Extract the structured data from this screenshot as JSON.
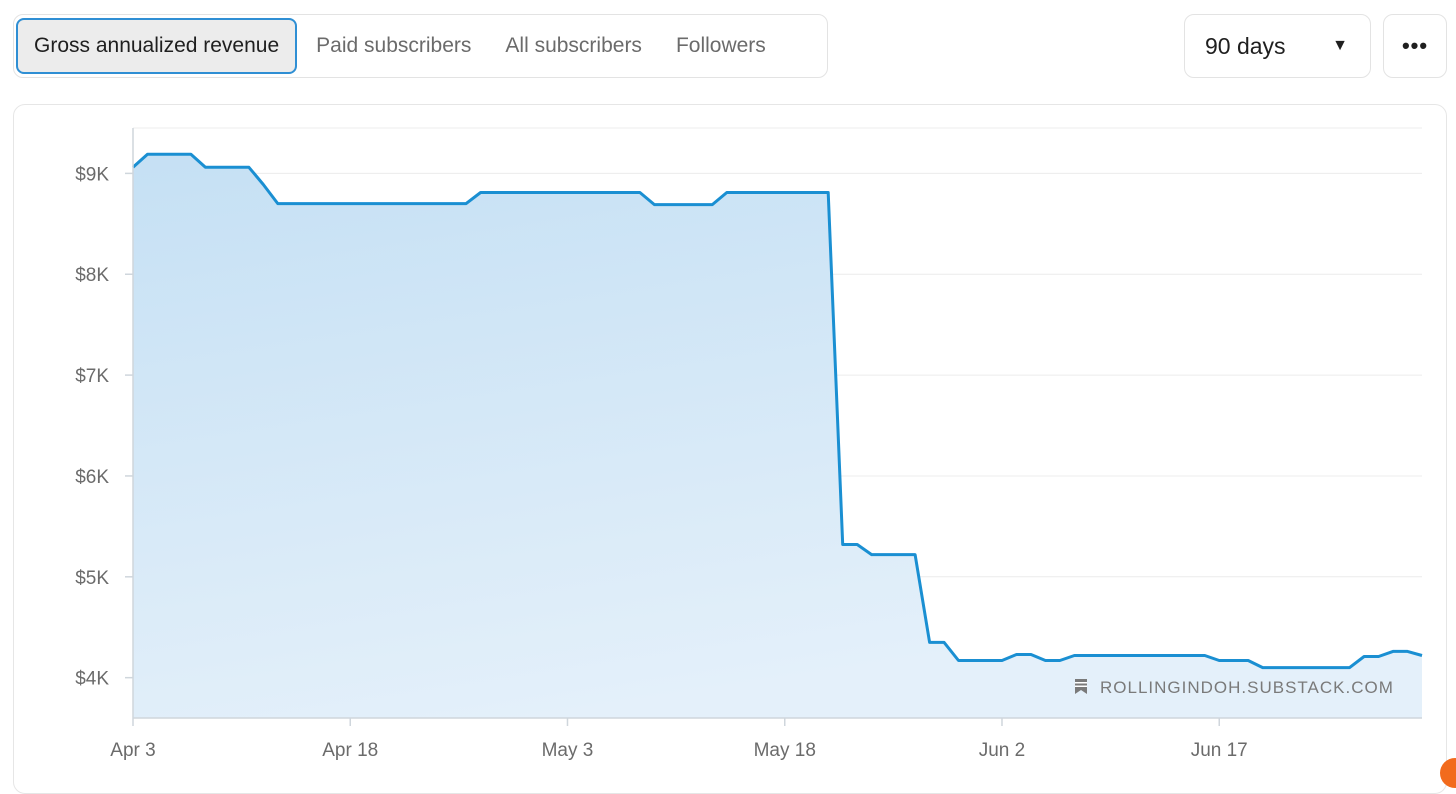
{
  "tabs": [
    {
      "label": "Gross annualized revenue",
      "active": true
    },
    {
      "label": "Paid subscribers",
      "active": false
    },
    {
      "label": "All subscribers",
      "active": false
    },
    {
      "label": "Followers",
      "active": false
    }
  ],
  "range_select": {
    "value": "90 days",
    "caret_icon": "caret-down-icon"
  },
  "more_button": {
    "icon": "more-horizontal-icon",
    "glyph": "•••"
  },
  "watermark": {
    "icon": "bookmark-icon",
    "text": "ROLLINGINDOH.SUBSTACK.COM"
  },
  "colors": {
    "line": "#1a8fd2",
    "fill_top": "#c5e0f4",
    "fill_bottom": "#e4f0fa",
    "accent": "#2f8fd4",
    "grid": "#ececec"
  },
  "chart_data": {
    "type": "area",
    "title": "",
    "xlabel": "",
    "ylabel": "",
    "x_tick_labels": [
      "Apr 3",
      "Apr 18",
      "May 3",
      "May 18",
      "Jun 2",
      "Jun 17"
    ],
    "y_tick_labels": [
      "$4K",
      "$5K",
      "$6K",
      "$7K",
      "$8K",
      "$9K"
    ],
    "y_tick_values": [
      4000,
      5000,
      6000,
      7000,
      8000,
      9000
    ],
    "ylim": [
      3600,
      9450
    ],
    "xlim": [
      "Apr 3",
      "Jul 1"
    ],
    "grid": true,
    "series": [
      {
        "x": [
          "Apr 3",
          "Apr 4",
          "Apr 5",
          "Apr 6",
          "Apr 7",
          "Apr 8",
          "Apr 9",
          "Apr 10",
          "Apr 11",
          "Apr 12",
          "Apr 13",
          "Apr 14",
          "Apr 15",
          "Apr 16",
          "Apr 17",
          "Apr 18",
          "Apr 19",
          "Apr 20",
          "Apr 21",
          "Apr 22",
          "Apr 23",
          "Apr 24",
          "Apr 25",
          "Apr 26",
          "Apr 27",
          "Apr 28",
          "Apr 29",
          "Apr 30",
          "May 1",
          "May 2",
          "May 3",
          "May 4",
          "May 5",
          "May 6",
          "May 7",
          "May 8",
          "May 9",
          "May 10",
          "May 11",
          "May 12",
          "May 13",
          "May 14",
          "May 15",
          "May 16",
          "May 17",
          "May 18",
          "May 19",
          "May 20",
          "May 21",
          "May 22",
          "May 23",
          "May 24",
          "May 25",
          "May 26",
          "May 27",
          "May 28",
          "May 29",
          "May 30",
          "May 31",
          "Jun 1",
          "Jun 2",
          "Jun 3",
          "Jun 4",
          "Jun 5",
          "Jun 6",
          "Jun 7",
          "Jun 8",
          "Jun 9",
          "Jun 10",
          "Jun 11",
          "Jun 12",
          "Jun 13",
          "Jun 14",
          "Jun 15",
          "Jun 16",
          "Jun 17",
          "Jun 18",
          "Jun 19",
          "Jun 20",
          "Jun 21",
          "Jun 22",
          "Jun 23",
          "Jun 24",
          "Jun 25",
          "Jun 26",
          "Jun 27",
          "Jun 28",
          "Jun 29",
          "Jun 30",
          "Jul 1"
        ],
        "values": [
          9060,
          9190,
          9190,
          9190,
          9190,
          9060,
          9060,
          9060,
          9060,
          8890,
          8700,
          8700,
          8700,
          8700,
          8700,
          8700,
          8700,
          8700,
          8700,
          8700,
          8700,
          8700,
          8700,
          8700,
          8810,
          8810,
          8810,
          8810,
          8810,
          8810,
          8810,
          8810,
          8810,
          8810,
          8810,
          8810,
          8690,
          8690,
          8690,
          8690,
          8690,
          8810,
          8810,
          8810,
          8810,
          8810,
          8810,
          8810,
          8810,
          5320,
          5320,
          5220,
          5220,
          5220,
          5220,
          4350,
          4350,
          4170,
          4170,
          4170,
          4170,
          4230,
          4230,
          4170,
          4170,
          4220,
          4220,
          4220,
          4220,
          4220,
          4220,
          4220,
          4220,
          4220,
          4220,
          4170,
          4170,
          4170,
          4100,
          4100,
          4100,
          4100,
          4100,
          4100,
          4100,
          4210,
          4210,
          4260,
          4260,
          4220
        ]
      }
    ]
  }
}
